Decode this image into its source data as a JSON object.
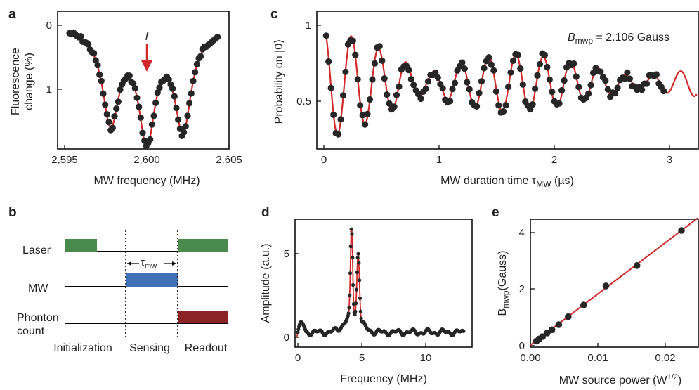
{
  "colors": {
    "fit": "#d12a2a",
    "dots": "#262626",
    "laser": "#4a8a4c",
    "mw": "#3f70b8",
    "photon": "#8b2226",
    "axis": "#000000"
  },
  "panel_a": {
    "letter": "a",
    "xlabel": "MW frequency (MHz)",
    "ylabel_line1": "Fluorescence",
    "ylabel_line2": "change (%)",
    "xticks": [
      "2,595",
      "2,600",
      "2,605"
    ],
    "yticks": [
      "0",
      "1"
    ],
    "arrow_label": "f"
  },
  "panel_b": {
    "letter": "b",
    "rows": [
      "Laser",
      "MW",
      "Phonton",
      "count"
    ],
    "tau_label": "τ",
    "tau_sub": "mw",
    "phases": [
      "Initialization",
      "Sensing",
      "Readout"
    ]
  },
  "panel_c": {
    "letter": "c",
    "xlabel_pre": "MW duration time τ",
    "xlabel_sub": "MW",
    "xlabel_post": " (µs)",
    "ylabel": "Probability on |0⟩",
    "xticks": [
      "0",
      "1",
      "2",
      "3"
    ],
    "yticks": [
      "1",
      "0.5"
    ],
    "annot_B": "B",
    "annot_sub": "mwp",
    "annot_val": " = 2.106 Gauss"
  },
  "panel_d": {
    "letter": "d",
    "xlabel": "Frequency (MHz)",
    "ylabel": "Amplitude (a.u.)",
    "xticks": [
      "0",
      "5",
      "10"
    ],
    "yticks": [
      "0",
      "5"
    ],
    "star": "*"
  },
  "panel_e": {
    "letter": "e",
    "xlabel_pre": "MW source power (W",
    "xlabel_sup": "1/2",
    "xlabel_post": ")",
    "ylabel_B": "B",
    "ylabel_sub": "mwp",
    "ylabel_post": "(Gauss)",
    "xticks": [
      "0.00",
      "0.01",
      "0.02"
    ],
    "yticks": [
      "0",
      "2",
      "4"
    ]
  },
  "chart_data": [
    {
      "type": "scatter",
      "panel": "a",
      "xlabel": "MW frequency (MHz)",
      "ylabel": "Fluorescence change (%)",
      "xlim": [
        2595,
        2605
      ],
      "ylim": [
        1.75,
        -0.1
      ],
      "y_inverted": true,
      "fit": {
        "type": "triple-lorentzian-dip",
        "centers": [
          2597.8,
          2600.0,
          2602.2
        ],
        "depths": [
          1.45,
          1.68,
          1.55
        ],
        "hwhm": 0.62
      },
      "points": {
        "x_start": 2595.3,
        "x_end": 2604.3,
        "count": 80
      }
    },
    {
      "type": "line",
      "panel": "c",
      "xlabel": "MW duration time τMW (µs)",
      "ylabel": "Probability on |0⟩",
      "xlim": [
        -0.05,
        3.25
      ],
      "ylim": [
        0.2,
        1.05
      ],
      "fit": {
        "type": "beating-oscillation",
        "offset": 0.62,
        "amplitude": 0.36,
        "frequency_MHz": 4.2,
        "beat_MHz": 0.55,
        "decay_us": 1.6
      },
      "points": {
        "x_start": 0.02,
        "x_end": 2.95,
        "count": 140
      }
    },
    {
      "type": "line",
      "panel": "d",
      "xlabel": "Frequency (MHz)",
      "ylabel": "Amplitude (a.u.)",
      "xlim": [
        -0.2,
        13.2
      ],
      "ylim": [
        -0.5,
        7
      ],
      "peaks": [
        {
          "x": 4.2,
          "y": 5.5
        },
        {
          "x": 4.7,
          "y": 4.3
        }
      ],
      "baseline": 0.3
    },
    {
      "type": "scatter",
      "panel": "e",
      "xlabel": "MW source power (W1/2)",
      "ylabel": "Bmwp (Gauss)",
      "xlim": [
        0,
        0.0245
      ],
      "ylim": [
        0,
        4.45
      ],
      "x": [
        0.0009,
        0.0013,
        0.0018,
        0.0025,
        0.0032,
        0.0042,
        0.0056,
        0.0079,
        0.0112,
        0.0158,
        0.0224
      ],
      "y": [
        0.16,
        0.24,
        0.32,
        0.45,
        0.56,
        0.74,
        1.02,
        1.43,
        2.1,
        2.82,
        4.05
      ],
      "fit": {
        "slope": 180,
        "intercept": 0.02
      }
    }
  ]
}
